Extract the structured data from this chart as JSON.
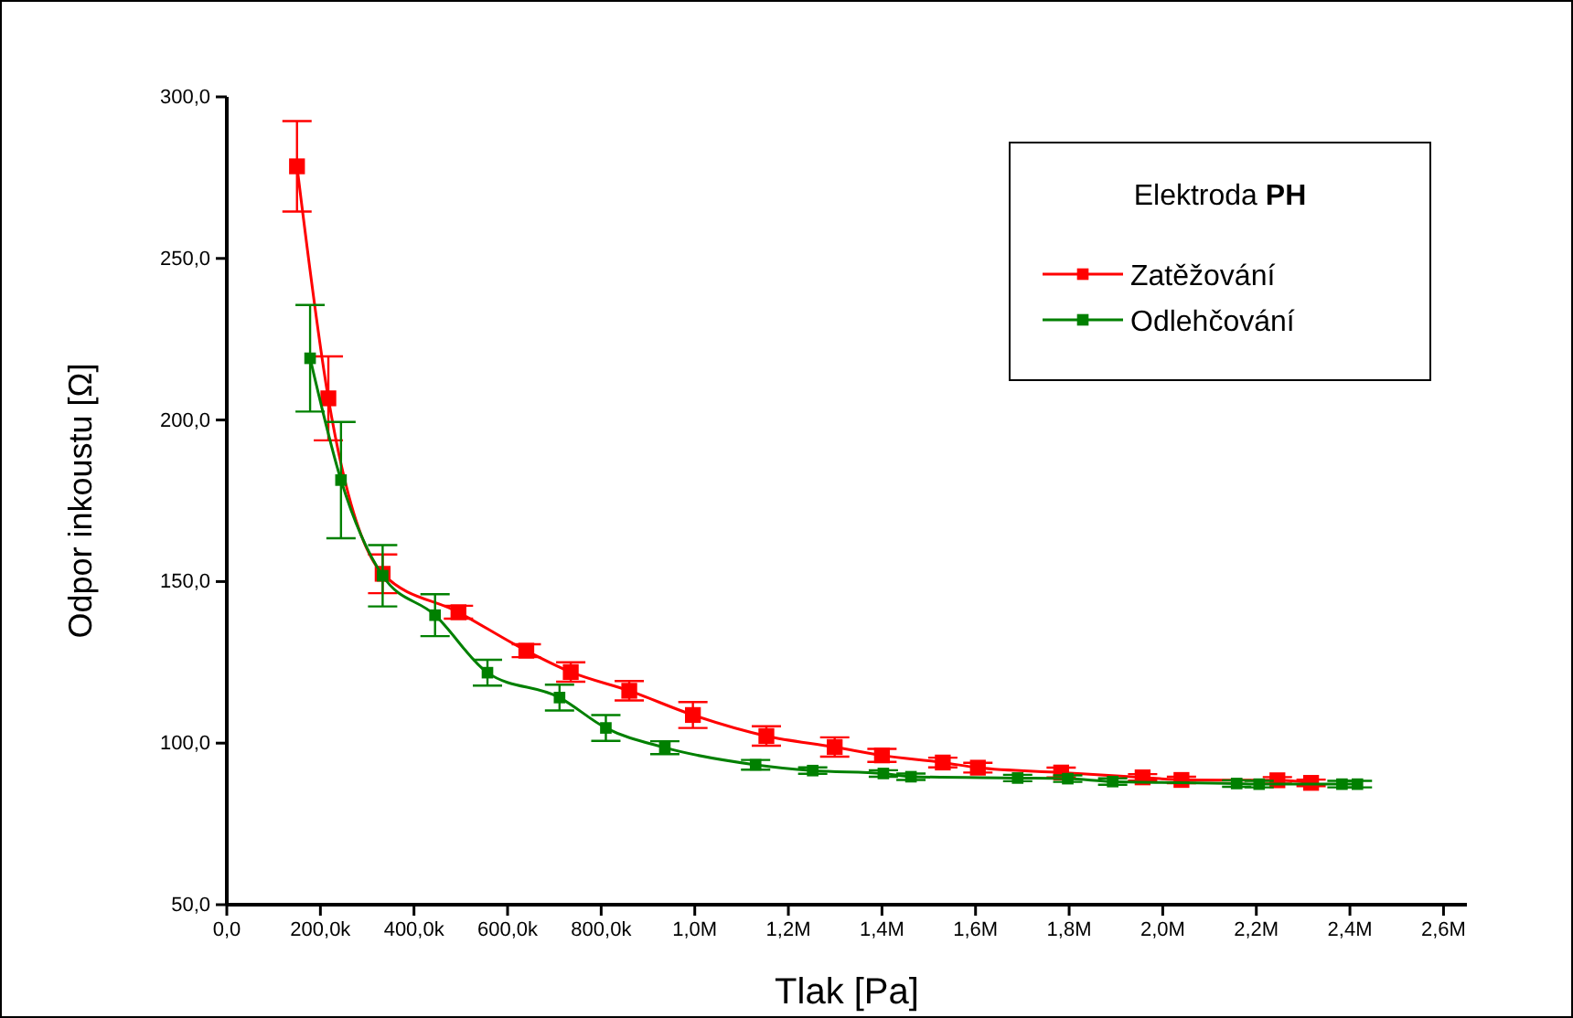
{
  "chart_data": {
    "type": "line",
    "xlabel": "Tlak [Pa]",
    "ylabel": "Odpor inkoustu [Ω]",
    "legend_title": "Elektroda PH",
    "legend": "top right",
    "marker": "square",
    "line_style": "solid",
    "grid": false,
    "xlim": [
      0,
      2650000
    ],
    "ylim": [
      50,
      300
    ],
    "xticks": [
      {
        "value": 0,
        "label": "0,0"
      },
      {
        "value": 200000,
        "label": "200,0k"
      },
      {
        "value": 400000,
        "label": "400,0k"
      },
      {
        "value": 600000,
        "label": "600,0k"
      },
      {
        "value": 800000,
        "label": "800,0k"
      },
      {
        "value": 1000000,
        "label": "1,0M"
      },
      {
        "value": 1200000,
        "label": "1,2M"
      },
      {
        "value": 1400000,
        "label": "1,4M"
      },
      {
        "value": 1600000,
        "label": "1,6M"
      },
      {
        "value": 1800000,
        "label": "1,8M"
      },
      {
        "value": 2000000,
        "label": "2,0M"
      },
      {
        "value": 2200000,
        "label": "2,2M"
      },
      {
        "value": 2400000,
        "label": "2,4M"
      },
      {
        "value": 2600000,
        "label": "2,6M"
      }
    ],
    "yticks": [
      {
        "value": 50,
        "label": "50,0"
      },
      {
        "value": 100,
        "label": "100,0"
      },
      {
        "value": 150,
        "label": "150,0"
      },
      {
        "value": 200,
        "label": "200,0"
      },
      {
        "value": 250,
        "label": "250,0"
      },
      {
        "value": 300,
        "label": "300,0"
      }
    ],
    "series": [
      {
        "name": "Zatěžování",
        "color": "#ff0000",
        "x": [
          150000,
          217000,
          333000,
          495000,
          640000,
          735000,
          860000,
          996000,
          1153000,
          1299000,
          1400000,
          1530000,
          1605000,
          1783000,
          1957000,
          2040000,
          2245000,
          2317000
        ],
        "values": [
          278.5,
          206.7,
          152.4,
          140.5,
          128.6,
          122.0,
          116.2,
          108.7,
          102.2,
          98.8,
          96.2,
          94.0,
          92.4,
          90.9,
          89.4,
          88.6,
          88.5,
          87.7
        ],
        "errors": [
          14,
          13,
          6,
          2,
          2,
          3,
          3,
          4,
          3,
          3,
          2,
          1.5,
          1.5,
          1.5,
          1,
          1,
          1,
          1
        ]
      },
      {
        "name": "Odlehčování",
        "color": "#008000",
        "x": [
          178000,
          244000,
          333000,
          445000,
          557000,
          711000,
          810000,
          936000,
          1130000,
          1252000,
          1403000,
          1462000,
          1690000,
          1797000,
          1893000,
          2158000,
          2206000,
          2383000,
          2416000
        ],
        "values": [
          219.1,
          181.4,
          151.8,
          139.6,
          121.8,
          114.1,
          104.7,
          98.6,
          93.3,
          91.5,
          90.6,
          89.6,
          89.2,
          89.0,
          88.1,
          87.5,
          87.3,
          87.3,
          87.3
        ],
        "errors": [
          16.5,
          18,
          9.5,
          6.5,
          4,
          4,
          4,
          2,
          1.5,
          1,
          1,
          1,
          1,
          1,
          1,
          1,
          1,
          1,
          1
        ]
      }
    ]
  }
}
